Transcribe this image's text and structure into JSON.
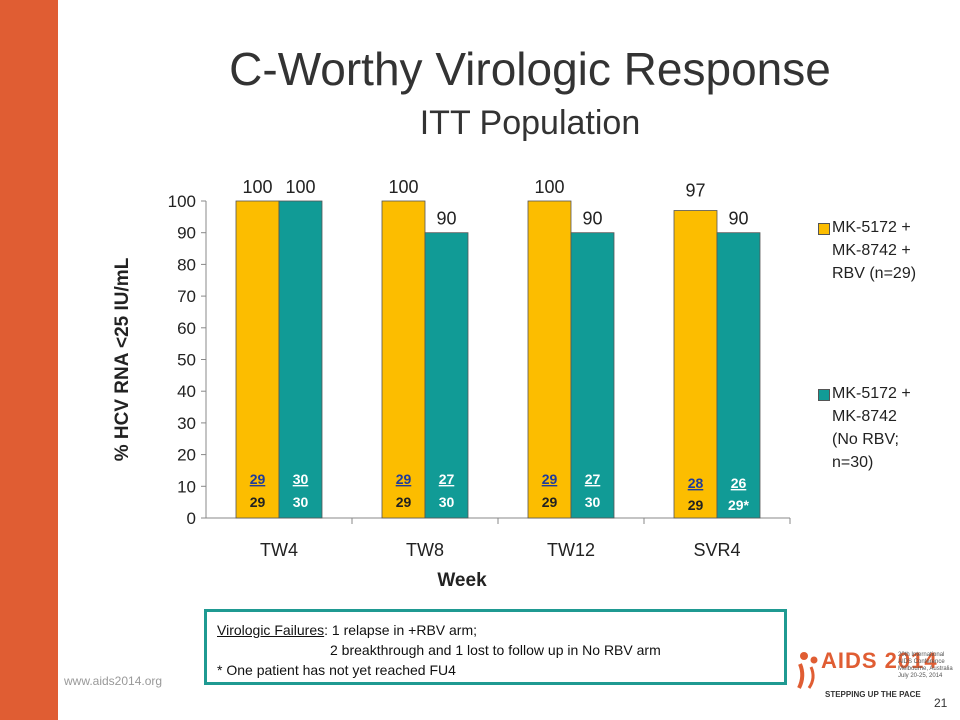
{
  "title": "C-Worthy Virologic Response",
  "subtitle": "ITT Population",
  "colors": {
    "accent": "#e05d33",
    "series1": "#fcbd00",
    "series2": "#119b96",
    "note_border": "#1f9a92"
  },
  "chart_data": {
    "type": "bar",
    "categories": [
      "TW4",
      "TW8",
      "TW12",
      "SVR4"
    ],
    "xlabel": "Week",
    "ylabel": "% HCV RNA <25 IU/mL",
    "ylim": [
      0,
      100
    ],
    "yticks": [
      0,
      10,
      20,
      30,
      40,
      50,
      60,
      70,
      80,
      90,
      100
    ],
    "grid": false,
    "legend_position": "right",
    "series": [
      {
        "name": "MK-5172 + MK-8742 + RBV (n=29)",
        "values": [
          100,
          100,
          100,
          97
        ],
        "value_labels": [
          "100",
          "100",
          "100",
          "97"
        ],
        "numerators": [
          "29",
          "29",
          "29",
          "28"
        ],
        "denominators": [
          "29",
          "29",
          "29",
          "29"
        ]
      },
      {
        "name": "MK-5172 + MK-8742 (No RBV; n=30)",
        "values": [
          100,
          90,
          90,
          90
        ],
        "value_labels": [
          "100",
          "90",
          "90",
          "90"
        ],
        "numerators": [
          "30",
          "27",
          "27",
          "26"
        ],
        "denominators": [
          "30",
          "30",
          "30",
          "29*"
        ]
      }
    ]
  },
  "legend": {
    "s1_lines": [
      "MK-5172 +",
      "MK-8742 +",
      "RBV (n=29)"
    ],
    "s2_lines": [
      "MK-5172 +",
      "MK-8742",
      "(No RBV;",
      "n=30)"
    ]
  },
  "note": {
    "l1_underlined": "Virologic Failures",
    "l1_rest": ":  1 relapse in +RBV arm;",
    "l2": "2 breakthrough and 1 lost to follow up in No RBV arm",
    "l3": "* One patient has not yet reached FU4"
  },
  "footer_url": "www.aids2014.org",
  "page_number": "21",
  "logo": {
    "text": "AIDS 2014",
    "conference": "20th International AIDS Conference Melbourne, Australia July 20-25, 2014",
    "tagline": "STEPPING UP THE PACE"
  }
}
